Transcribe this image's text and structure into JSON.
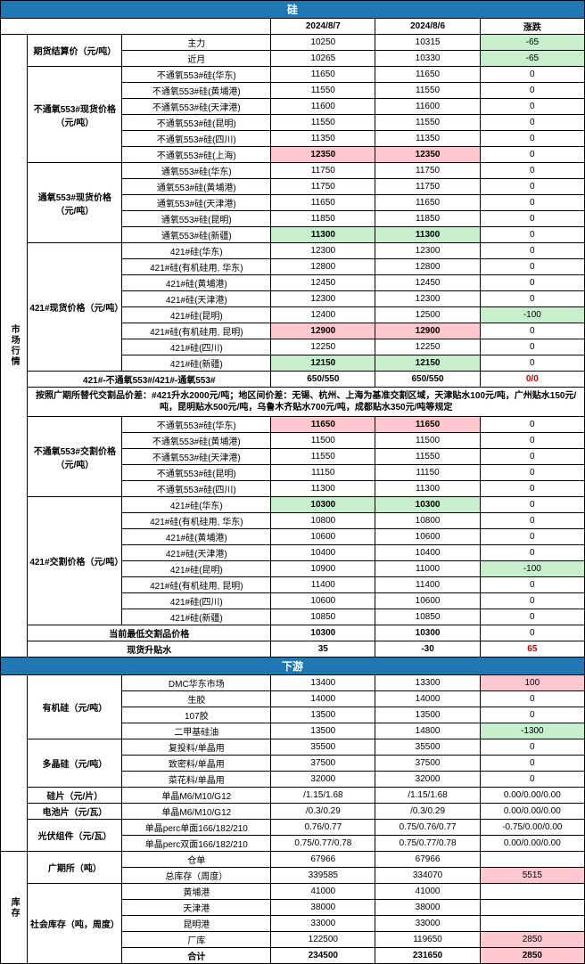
{
  "header": {
    "title": "硅",
    "date1": "2024/8/7",
    "date2": "2024/8/6",
    "diff": "涨跌"
  },
  "sec1": {
    "side": "市场行情",
    "g1": {
      "cat": "期货结算价（元/吨）",
      "rows": [
        {
          "name": "主力",
          "v1": "10250",
          "v2": "10315",
          "d": "-65",
          "dcls": "green-bg"
        },
        {
          "name": "近月",
          "v1": "10265",
          "v2": "10330",
          "d": "-65",
          "dcls": "green-bg"
        }
      ]
    },
    "g2": {
      "cat": "不通氧553#现货价格（元/吨）",
      "rows": [
        {
          "name": "不通氧553#硅(华东)",
          "v1": "11650",
          "v2": "11650",
          "d": "0",
          "dcls": ""
        },
        {
          "name": "不通氧553#硅(黄埔港)",
          "v1": "11550",
          "v2": "11550",
          "d": "0",
          "dcls": ""
        },
        {
          "name": "不通氧553#硅(天津港)",
          "v1": "11600",
          "v2": "11600",
          "d": "0",
          "dcls": ""
        },
        {
          "name": "不通氧553#硅(昆明)",
          "v1": "11550",
          "v2": "11550",
          "d": "0",
          "dcls": ""
        },
        {
          "name": "不通氧553#硅(四川)",
          "v1": "11350",
          "v2": "11350",
          "d": "0",
          "dcls": ""
        },
        {
          "name": "不通氧553#硅(上海)",
          "v1": "12350",
          "v2": "12350",
          "d": "0",
          "dcls": "",
          "v1cls": "bold red-bg",
          "v2cls": "bold red-bg"
        }
      ]
    },
    "g3": {
      "cat": "通氧553#现货价格（元/吨）",
      "rows": [
        {
          "name": "通氧553#硅(华东)",
          "v1": "11750",
          "v2": "11750",
          "d": "0",
          "dcls": ""
        },
        {
          "name": "通氧553#硅(黄埔港)",
          "v1": "11750",
          "v2": "11750",
          "d": "0",
          "dcls": ""
        },
        {
          "name": "通氧553#硅(天津港)",
          "v1": "11650",
          "v2": "11650",
          "d": "0",
          "dcls": ""
        },
        {
          "name": "通氧553#硅(昆明)",
          "v1": "11850",
          "v2": "11850",
          "d": "0",
          "dcls": ""
        },
        {
          "name": "通氧553#硅(新疆)",
          "v1": "11300",
          "v2": "11300",
          "d": "0",
          "dcls": "",
          "v1cls": "bold green-bg",
          "v2cls": "bold green-bg"
        }
      ]
    },
    "g4": {
      "cat": "421#现货价格（元/吨）",
      "rows": [
        {
          "name": "421#硅(华东)",
          "v1": "12300",
          "v2": "12300",
          "d": "0",
          "dcls": ""
        },
        {
          "name": "421#硅(有机硅用, 华东)",
          "v1": "12800",
          "v2": "12800",
          "d": "0",
          "dcls": ""
        },
        {
          "name": "421#硅(黄埔港)",
          "v1": "12450",
          "v2": "12450",
          "d": "0",
          "dcls": ""
        },
        {
          "name": "421#硅(天津港)",
          "v1": "12300",
          "v2": "12300",
          "d": "0",
          "dcls": ""
        },
        {
          "name": "421#硅(昆明)",
          "v1": "12400",
          "v2": "12500",
          "d": "-100",
          "dcls": "green-bg"
        },
        {
          "name": "421#硅(有机硅用, 昆明)",
          "v1": "12900",
          "v2": "12900",
          "d": "0",
          "dcls": "",
          "v1cls": "bold red-bg",
          "v2cls": "bold red-bg"
        },
        {
          "name": "421#硅(四川)",
          "v1": "12250",
          "v2": "12250",
          "d": "0",
          "dcls": ""
        },
        {
          "name": "421#硅(新疆)",
          "v1": "12150",
          "v2": "12150",
          "d": "0",
          "dcls": "",
          "v1cls": "bold green-bg",
          "v2cls": "bold green-bg"
        }
      ]
    },
    "spread": {
      "name": "421#-不通氧553#/421#-通氧553#",
      "v1": "650/550",
      "v2": "650/550",
      "d": "0/0",
      "dcls": "red-text"
    },
    "note": "按照广期所替代交割品价差：#421升水2000元/吨；地区间价差：无锡、杭州、上海为基准交割区域，天津贴水100元/吨，广州贴水150元/吨，昆明贴水500元/吨，乌鲁木齐贴水700元/吨，成都贴水350元/吨等规定",
    "g5": {
      "cat": "不通氧553#交割价格（元/吨）",
      "rows": [
        {
          "name": "不通氧553#硅(华东)",
          "v1": "11650",
          "v2": "11650",
          "d": "0",
          "dcls": "",
          "v1cls": "bold red-bg",
          "v2cls": "bold red-bg"
        },
        {
          "name": "不通氧553#硅(黄埔港)",
          "v1": "11500",
          "v2": "11500",
          "d": "0",
          "dcls": ""
        },
        {
          "name": "不通氧553#硅(天津港)",
          "v1": "11550",
          "v2": "11550",
          "d": "0",
          "dcls": ""
        },
        {
          "name": "不通氧553#硅(昆明)",
          "v1": "11150",
          "v2": "11150",
          "d": "0",
          "dcls": ""
        },
        {
          "name": "不通氧553#硅(四川)",
          "v1": "11300",
          "v2": "11300",
          "d": "0",
          "dcls": ""
        }
      ]
    },
    "g6": {
      "cat": "421#交割价格（元/吨）",
      "rows": [
        {
          "name": "421#硅(华东)",
          "v1": "10300",
          "v2": "10300",
          "d": "0",
          "dcls": "",
          "v1cls": "bold green-bg",
          "v2cls": "bold green-bg"
        },
        {
          "name": "421#硅(有机硅用, 华东)",
          "v1": "10800",
          "v2": "10800",
          "d": "0",
          "dcls": ""
        },
        {
          "name": "421#硅(黄埔港)",
          "v1": "10600",
          "v2": "10600",
          "d": "0",
          "dcls": ""
        },
        {
          "name": "421#硅(天津港)",
          "v1": "10400",
          "v2": "10400",
          "d": "0",
          "dcls": ""
        },
        {
          "name": "421#硅(昆明)",
          "v1": "10900",
          "v2": "11000",
          "d": "-100",
          "dcls": "green-bg"
        },
        {
          "name": "421#硅(有机硅用, 昆明)",
          "v1": "11400",
          "v2": "11400",
          "d": "0",
          "dcls": ""
        },
        {
          "name": "421#硅(四川)",
          "v1": "10600",
          "v2": "10600",
          "d": "0",
          "dcls": ""
        },
        {
          "name": "421#硅(新疆)",
          "v1": "10850",
          "v2": "10850",
          "d": "0",
          "dcls": ""
        }
      ]
    },
    "lowdel": {
      "name": "当前最低交割品价格",
      "v1": "10300",
      "v2": "10300",
      "d": "0",
      "dcls": ""
    },
    "basis": {
      "name": "现货升贴水",
      "v1": "35",
      "v2": "-30",
      "d": "65",
      "dcls": "red-text"
    }
  },
  "sec2": {
    "title": "下游",
    "g1": {
      "cat": "有机硅（元/吨）",
      "rows": [
        {
          "name": "DMC华东市场",
          "v1": "13400",
          "v2": "13300",
          "d": "100",
          "dcls": "red-bg"
        },
        {
          "name": "生胶",
          "v1": "14000",
          "v2": "14000",
          "d": "0",
          "dcls": ""
        },
        {
          "name": "107胶",
          "v1": "13500",
          "v2": "13500",
          "d": "0",
          "dcls": ""
        },
        {
          "name": "二甲基硅油",
          "v1": "13500",
          "v2": "14800",
          "d": "-1300",
          "dcls": "green-bg"
        }
      ]
    },
    "g2": {
      "cat": "多晶硅（元/吨）",
      "rows": [
        {
          "name": "复投料/单晶用",
          "v1": "35500",
          "v2": "35500",
          "d": "0",
          "dcls": ""
        },
        {
          "name": "致密料/单晶用",
          "v1": "37500",
          "v2": "37500",
          "d": "0",
          "dcls": ""
        },
        {
          "name": "菜花料/单晶用",
          "v1": "32000",
          "v2": "32000",
          "d": "0",
          "dcls": ""
        }
      ]
    },
    "g3": {
      "cat": "硅片（元/片）",
      "rows": [
        {
          "name": "单晶M6/M10/G12",
          "v1": "/1.15/1.68",
          "v2": "/1.15/1.68",
          "d": "0.00/0.00/0.00",
          "dcls": ""
        }
      ]
    },
    "g4": {
      "cat": "电池片（元/瓦）",
      "rows": [
        {
          "name": "单晶M6/M10/G12",
          "v1": "/0.3/0.29",
          "v2": "/0.3/0.29",
          "d": "0.00/0.00/0.00",
          "dcls": ""
        }
      ]
    },
    "g5": {
      "cat": "光伏组件（元/瓦）",
      "rows": [
        {
          "name": "单晶perc单面166/182/210",
          "v1": "0.76/0.77",
          "v2": "0.75/0.76/0.77",
          "d": "-0.75/0.00/0.00",
          "dcls": ""
        },
        {
          "name": "单晶perc双面166/182/210",
          "v1": "0.75/0.77/0.78",
          "v2": "0.75/0.77/0.78",
          "d": "0.00/0.00/0.00",
          "dcls": ""
        }
      ]
    }
  },
  "sec3": {
    "side": "库存",
    "g1": {
      "cat": "广期所（吨）",
      "rows": [
        {
          "name": "仓单",
          "v1": "67966",
          "v2": "67966",
          "d": "",
          "dcls": ""
        },
        {
          "name": "总库存（周度）",
          "v1": "339585",
          "v2": "334070",
          "d": "5515",
          "dcls": "red-bg"
        }
      ]
    },
    "g2": {
      "cat": "社会库存（吨，周度）",
      "rows": [
        {
          "name": "黄埔港",
          "v1": "41000",
          "v2": "41000",
          "d": "",
          "dcls": ""
        },
        {
          "name": "天津港",
          "v1": "38000",
          "v2": "38000",
          "d": "",
          "dcls": ""
        },
        {
          "name": "昆明港",
          "v1": "33000",
          "v2": "33000",
          "d": "",
          "dcls": ""
        },
        {
          "name": "厂库",
          "v1": "122500",
          "v2": "119650",
          "d": "2850",
          "dcls": "red-bg"
        },
        {
          "name": "合计",
          "v1": "234500",
          "v2": "231650",
          "d": "2850",
          "dcls": "red-bg",
          "bold": true
        }
      ]
    }
  }
}
